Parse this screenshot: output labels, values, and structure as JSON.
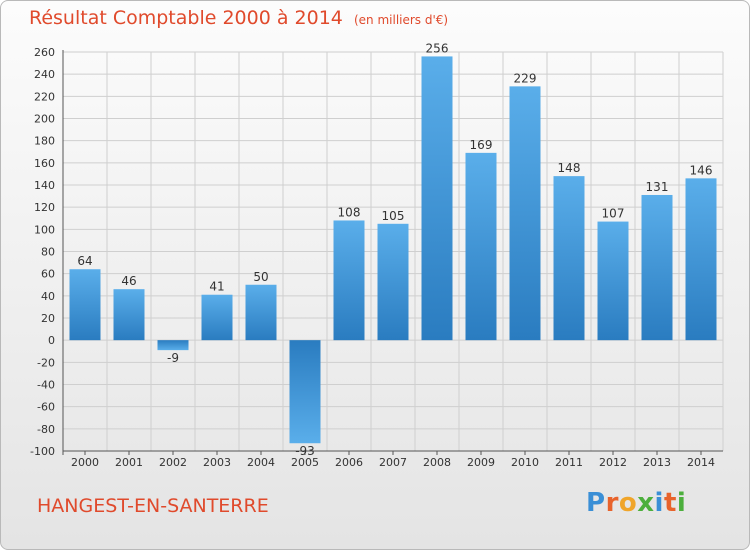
{
  "chart_data": {
    "type": "bar",
    "title": "Résultat Comptable 2000 à 2014",
    "subtitle": "(en milliers d'€)",
    "categories": [
      "2000",
      "2001",
      "2002",
      "2003",
      "2004",
      "2005",
      "2006",
      "2007",
      "2008",
      "2009",
      "2010",
      "2011",
      "2012",
      "2013",
      "2014"
    ],
    "values": [
      64,
      46,
      -9,
      41,
      50,
      -93,
      108,
      105,
      256,
      169,
      229,
      148,
      107,
      131,
      146
    ],
    "ylim": [
      -100,
      260
    ],
    "yticks": [
      -100,
      -80,
      -60,
      -40,
      -20,
      0,
      20,
      40,
      60,
      80,
      100,
      120,
      140,
      160,
      180,
      200,
      220,
      240,
      260
    ],
    "grid": true,
    "bar_color": "#3a93d8"
  },
  "footer": {
    "commune": "HANGEST-EN-SANTERRE"
  },
  "logo": {
    "text": "Proxiti",
    "letters": [
      {
        "ch": "P",
        "color": "#3a8fd6"
      },
      {
        "ch": "r",
        "color": "#e8632b"
      },
      {
        "ch": "o",
        "color": "#f0a52a"
      },
      {
        "ch": "x",
        "color": "#4caf3c"
      },
      {
        "ch": "i",
        "color": "#3a8fd6"
      },
      {
        "ch": "t",
        "color": "#e8632b"
      },
      {
        "ch": "i",
        "color": "#4caf3c"
      }
    ]
  },
  "colors": {
    "title": "#e04a2c",
    "axis_text": "#333333",
    "grid": "#cfcfcf"
  }
}
